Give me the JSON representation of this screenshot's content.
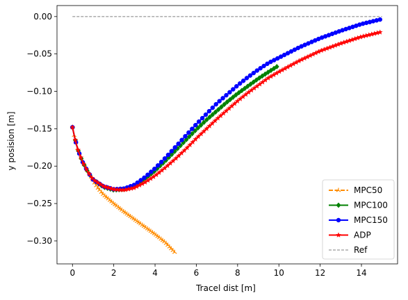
{
  "chart_data": {
    "type": "line",
    "title": "",
    "xlabel": "Tracel dist [m]",
    "ylabel": "y posision [m]",
    "xlim": [
      -0.75,
      15.75
    ],
    "ylim": [
      -0.3307,
      0.0147
    ],
    "xticks": [
      0,
      2,
      4,
      6,
      8,
      10,
      12,
      14
    ],
    "yticks": [
      0.0,
      -0.05,
      -0.1,
      -0.15,
      -0.2,
      -0.25,
      -0.3
    ],
    "ytick_labels": [
      "0.00",
      "−0.05",
      "−0.10",
      "−0.15",
      "−0.20",
      "−0.25",
      "−0.30"
    ],
    "legend_position": "lower-right",
    "grid": false,
    "series": [
      {
        "name": "MPC50",
        "color": "#ff8c00",
        "linestyle": "dashed",
        "marker": "tri",
        "points": [
          [
            0.0,
            -0.148
          ],
          [
            0.1,
            -0.161
          ],
          [
            0.2,
            -0.172
          ],
          [
            0.3,
            -0.181
          ],
          [
            0.4,
            -0.188
          ],
          [
            0.6,
            -0.199
          ],
          [
            0.8,
            -0.209
          ],
          [
            1.0,
            -0.219
          ],
          [
            1.2,
            -0.228
          ],
          [
            1.5,
            -0.238
          ],
          [
            2.0,
            -0.25
          ],
          [
            2.5,
            -0.261
          ],
          [
            3.0,
            -0.271
          ],
          [
            3.5,
            -0.281
          ],
          [
            4.0,
            -0.291
          ],
          [
            4.5,
            -0.302
          ],
          [
            4.95,
            -0.315
          ]
        ]
      },
      {
        "name": "MPC100",
        "color": "#008000",
        "linestyle": "solid",
        "marker": "diamond",
        "points": [
          [
            0.0,
            -0.148
          ],
          [
            0.1,
            -0.161
          ],
          [
            0.2,
            -0.172
          ],
          [
            0.3,
            -0.181
          ],
          [
            0.5,
            -0.195
          ],
          [
            0.75,
            -0.208
          ],
          [
            1.0,
            -0.218
          ],
          [
            1.5,
            -0.228
          ],
          [
            2.0,
            -0.232
          ],
          [
            2.5,
            -0.231
          ],
          [
            3.0,
            -0.226
          ],
          [
            3.5,
            -0.217
          ],
          [
            4.0,
            -0.206
          ],
          [
            4.5,
            -0.193
          ],
          [
            5.0,
            -0.179
          ],
          [
            5.5,
            -0.165
          ],
          [
            6.0,
            -0.151
          ],
          [
            6.5,
            -0.138
          ],
          [
            7.0,
            -0.126
          ],
          [
            7.5,
            -0.114
          ],
          [
            8.0,
            -0.103
          ],
          [
            8.5,
            -0.093
          ],
          [
            9.0,
            -0.083
          ],
          [
            9.5,
            -0.074
          ],
          [
            9.9,
            -0.067
          ]
        ]
      },
      {
        "name": "MPC150",
        "color": "#0000ff",
        "linestyle": "solid",
        "marker": "circle",
        "points": [
          [
            0.0,
            -0.148
          ],
          [
            0.1,
            -0.161
          ],
          [
            0.2,
            -0.172
          ],
          [
            0.3,
            -0.181
          ],
          [
            0.5,
            -0.195
          ],
          [
            0.75,
            -0.208
          ],
          [
            1.0,
            -0.218
          ],
          [
            1.5,
            -0.227
          ],
          [
            2.0,
            -0.231
          ],
          [
            2.5,
            -0.23
          ],
          [
            3.0,
            -0.225
          ],
          [
            3.5,
            -0.215
          ],
          [
            4.0,
            -0.203
          ],
          [
            4.5,
            -0.189
          ],
          [
            5.0,
            -0.174
          ],
          [
            5.5,
            -0.159
          ],
          [
            6.0,
            -0.144
          ],
          [
            6.5,
            -0.13
          ],
          [
            7.0,
            -0.116
          ],
          [
            7.5,
            -0.104
          ],
          [
            8.0,
            -0.092
          ],
          [
            8.5,
            -0.081
          ],
          [
            9.0,
            -0.071
          ],
          [
            9.5,
            -0.062
          ],
          [
            10.0,
            -0.055
          ],
          [
            11.0,
            -0.041
          ],
          [
            12.0,
            -0.029
          ],
          [
            13.0,
            -0.019
          ],
          [
            14.0,
            -0.01
          ],
          [
            14.9,
            -0.004
          ]
        ]
      },
      {
        "name": "ADP",
        "color": "#ff0000",
        "linestyle": "solid",
        "marker": "star",
        "points": [
          [
            0.0,
            -0.148
          ],
          [
            0.1,
            -0.161
          ],
          [
            0.2,
            -0.172
          ],
          [
            0.3,
            -0.181
          ],
          [
            0.5,
            -0.195
          ],
          [
            0.75,
            -0.208
          ],
          [
            1.0,
            -0.218
          ],
          [
            1.5,
            -0.227
          ],
          [
            2.0,
            -0.231
          ],
          [
            2.5,
            -0.232
          ],
          [
            3.0,
            -0.229
          ],
          [
            3.5,
            -0.222
          ],
          [
            4.0,
            -0.213
          ],
          [
            4.5,
            -0.202
          ],
          [
            5.0,
            -0.19
          ],
          [
            5.5,
            -0.177
          ],
          [
            6.0,
            -0.163
          ],
          [
            6.5,
            -0.15
          ],
          [
            7.0,
            -0.137
          ],
          [
            7.5,
            -0.125
          ],
          [
            8.0,
            -0.113
          ],
          [
            8.5,
            -0.102
          ],
          [
            9.0,
            -0.092
          ],
          [
            9.5,
            -0.082
          ],
          [
            10.0,
            -0.074
          ],
          [
            11.0,
            -0.059
          ],
          [
            12.0,
            -0.046
          ],
          [
            13.0,
            -0.036
          ],
          [
            14.0,
            -0.027
          ],
          [
            14.9,
            -0.021
          ]
        ]
      },
      {
        "name": "Ref",
        "color": "#808080",
        "linestyle": "dashed",
        "marker": "none",
        "points": [
          [
            0.0,
            0.0
          ],
          [
            15.0,
            0.0
          ]
        ]
      }
    ]
  }
}
